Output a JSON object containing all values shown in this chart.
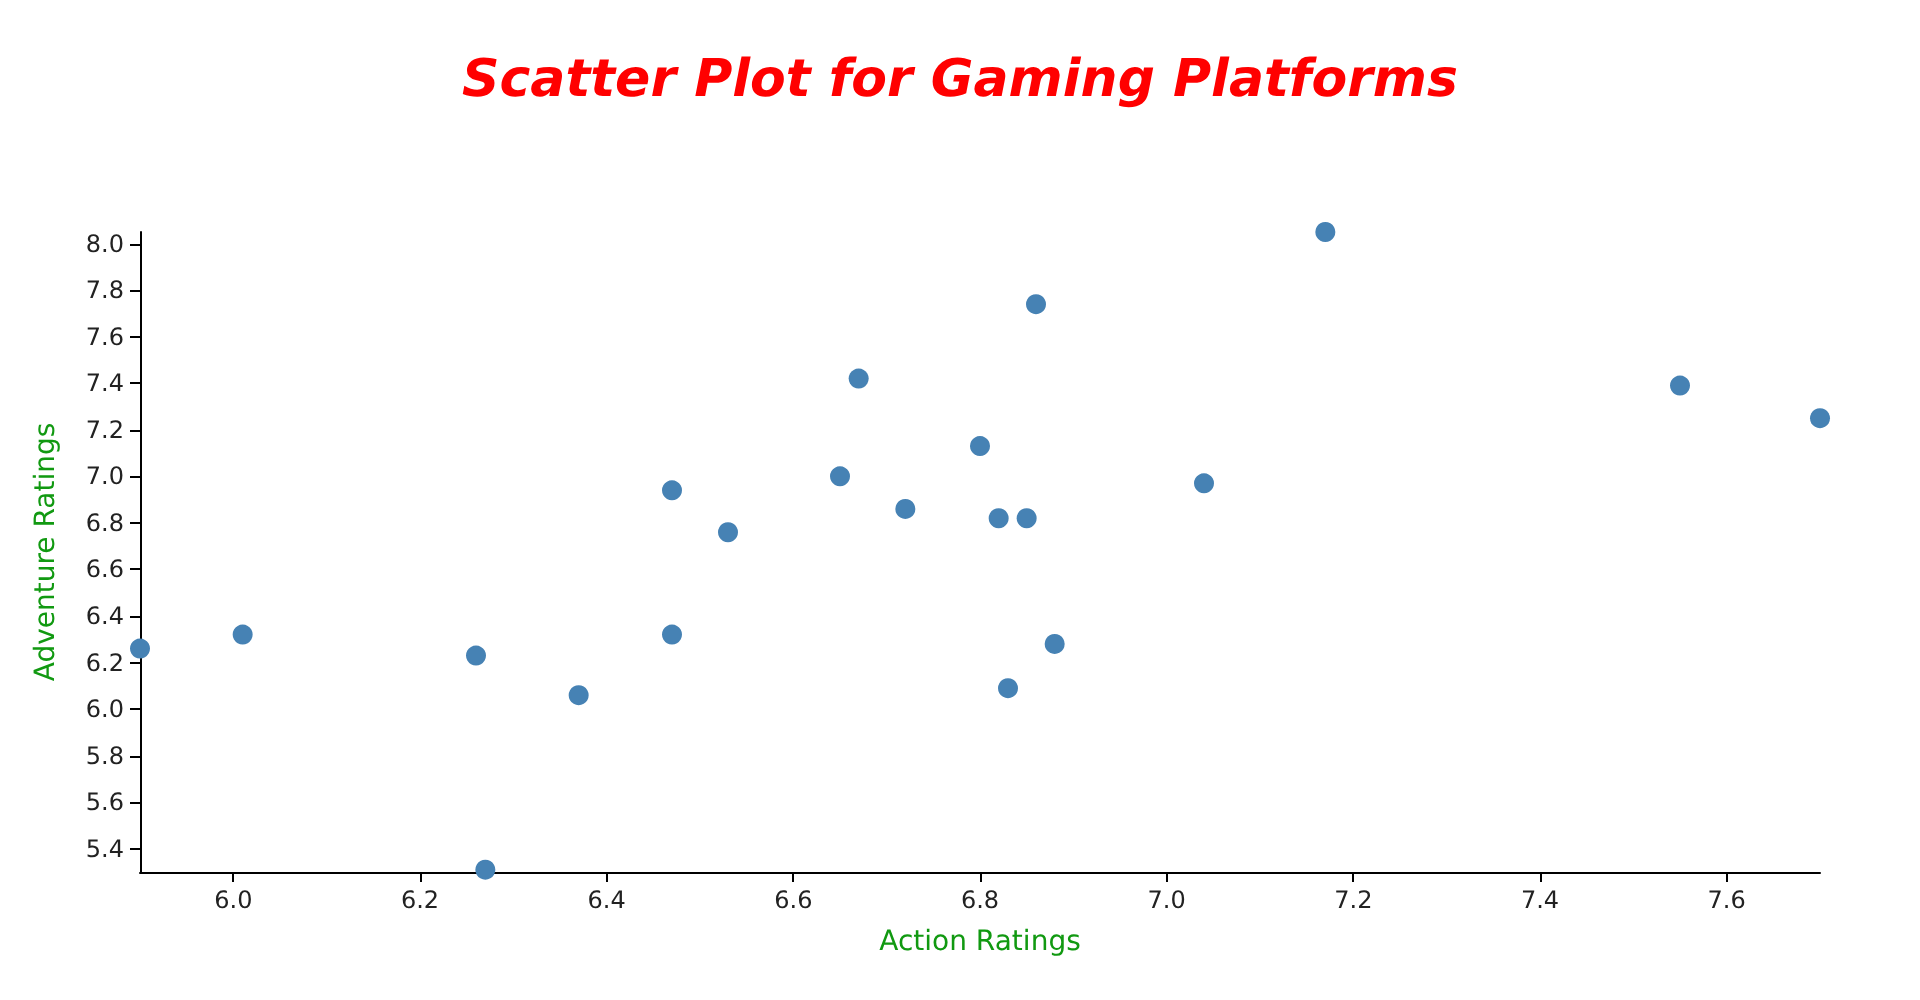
{
  "chart_data": {
    "type": "scatter",
    "title": "Scatter Plot for Gaming Platforms",
    "xlabel": "Action Ratings",
    "ylabel": "Adventure Ratings",
    "x": [
      5.9,
      6.01,
      6.26,
      6.27,
      6.37,
      6.47,
      6.47,
      6.53,
      6.65,
      6.67,
      6.72,
      6.8,
      6.82,
      6.83,
      6.85,
      6.86,
      6.88,
      7.04,
      7.17,
      7.55,
      7.7
    ],
    "series": [
      {
        "color": "#4682b4",
        "values": [
          6.26,
          6.32,
          6.23,
          5.31,
          6.06,
          6.94,
          6.32,
          6.76,
          7.0,
          7.42,
          6.86,
          7.13,
          6.82,
          6.09,
          6.82,
          7.74,
          6.28,
          6.97,
          8.05,
          7.39,
          7.25
        ]
      }
    ],
    "xlim": [
      5.9,
      7.7
    ],
    "xticks": [
      {
        "value": 6,
        "label": "6.0"
      },
      6.2,
      6.4,
      6.6,
      6.8,
      {
        "value": 7,
        "label": "7.0"
      },
      7.2,
      7.4,
      7.6
    ],
    "ylim": [
      5.3,
      8.05
    ],
    "yticks": [
      5.4,
      5.6,
      5.8,
      {
        "value": 6,
        "label": "6.0"
      },
      6.2,
      6.4,
      6.6,
      6.8,
      {
        "value": 7,
        "label": "7.0"
      },
      7.2,
      7.4,
      7.6,
      7.8,
      {
        "value": 8,
        "label": "8.0"
      }
    ],
    "grid": false,
    "marker": "circle"
  }
}
